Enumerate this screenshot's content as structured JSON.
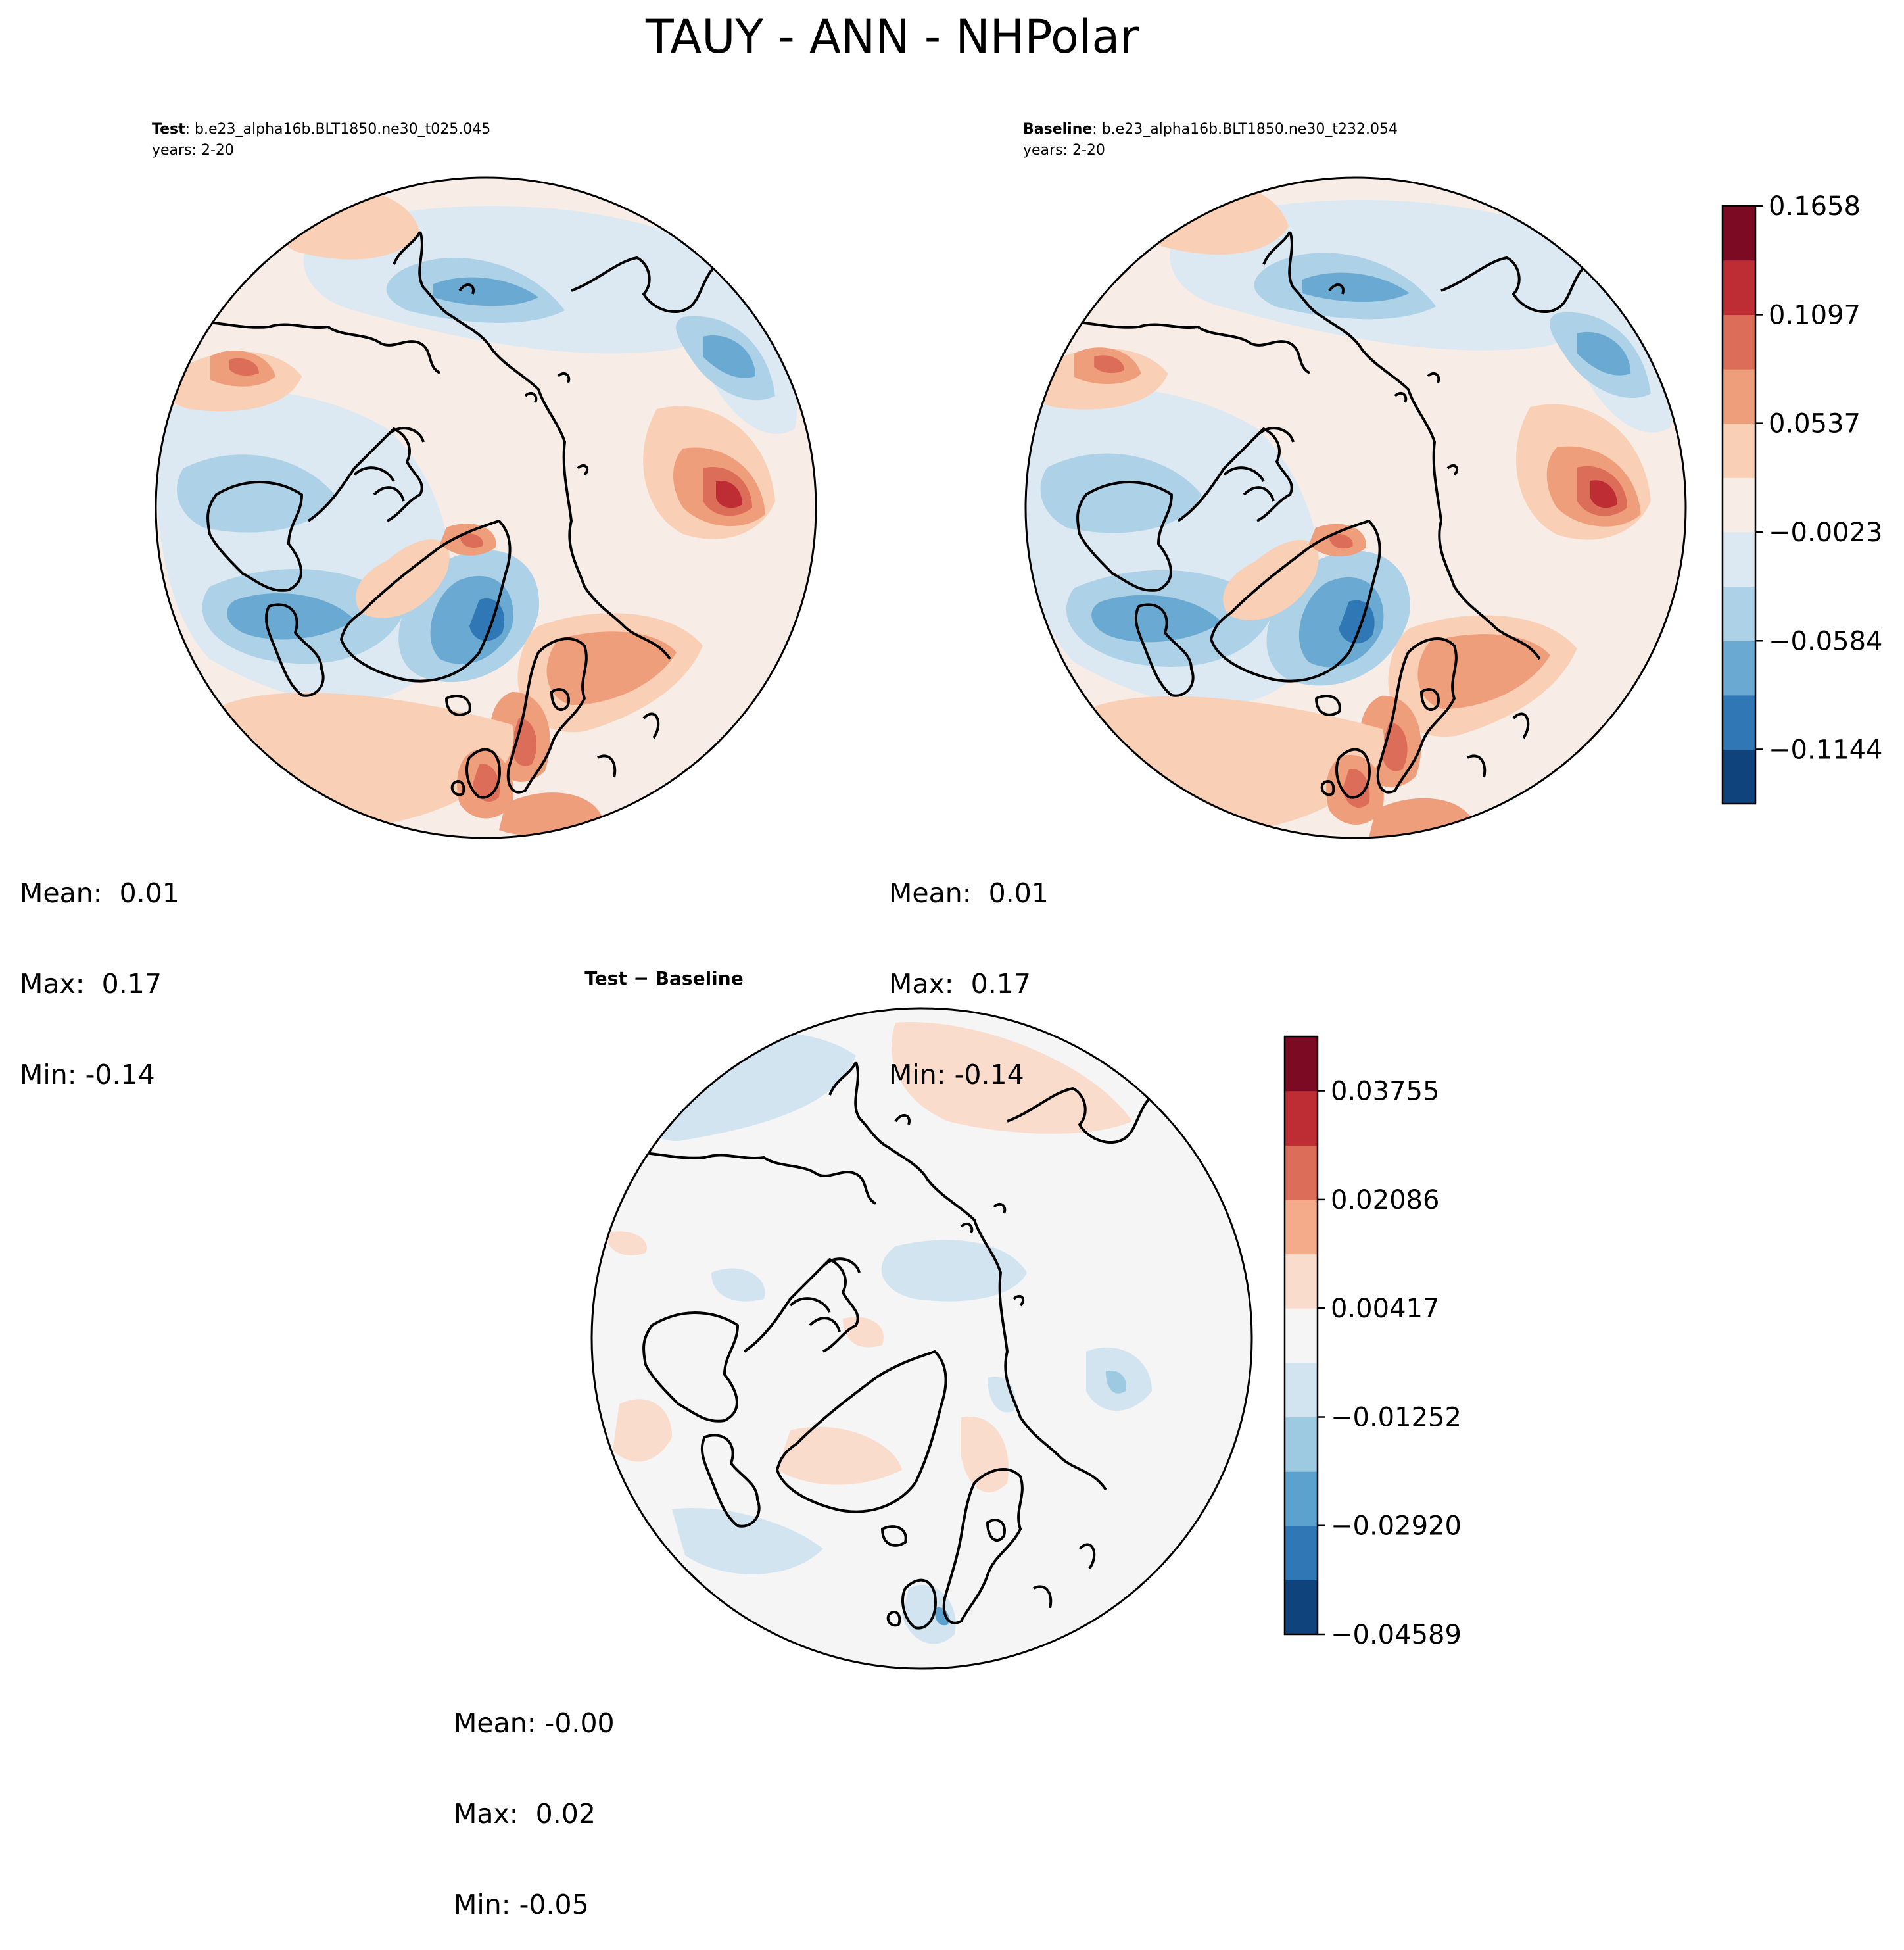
{
  "figure": {
    "title": "TAUY - ANN - NHPolar"
  },
  "panels": {
    "test": {
      "label_bold": "Test",
      "case": ": b.e23_alpha16b.BLT1850.ne30_t025.045",
      "years": "years: 2-20",
      "stats": {
        "mean": "Mean:  0.01",
        "max": "Max:  0.17",
        "min": "Min: -0.14"
      }
    },
    "baseline": {
      "label_bold": "Baseline",
      "case": ": b.e23_alpha16b.BLT1850.ne30_t232.054",
      "years": "years: 2-20",
      "stats": {
        "mean": "Mean:  0.01",
        "max": "Max:  0.17",
        "min": "Min: -0.14"
      }
    },
    "diff": {
      "label": "Test − Baseline",
      "stats": {
        "mean": "Mean: -0.00",
        "max": "Max:  0.02",
        "min": "Min: -0.05"
      }
    }
  },
  "chart_data": [
    {
      "type": "heatmap",
      "projection": "north-polar-stereographic",
      "panel": "test",
      "variable": "TAUY",
      "season": "ANN",
      "mean": 0.01,
      "max": 0.17,
      "min": -0.14,
      "colormap": "RdBu_r",
      "levels": [
        -0.1424,
        -0.1144,
        -0.0864,
        -0.0584,
        -0.0303,
        -0.0023,
        0.0257,
        0.0537,
        0.0817,
        0.1097,
        0.1378,
        0.1658
      ]
    },
    {
      "type": "heatmap",
      "projection": "north-polar-stereographic",
      "panel": "baseline",
      "variable": "TAUY",
      "season": "ANN",
      "mean": 0.01,
      "max": 0.17,
      "min": -0.14,
      "colormap": "RdBu_r",
      "levels": [
        -0.1424,
        -0.1144,
        -0.0864,
        -0.0584,
        -0.0303,
        -0.0023,
        0.0257,
        0.0537,
        0.0817,
        0.1097,
        0.1378,
        0.1658
      ]
    },
    {
      "type": "heatmap",
      "projection": "north-polar-stereographic",
      "panel": "diff",
      "variable": "TAUY",
      "season": "ANN",
      "mean": -0.0,
      "max": 0.02,
      "min": -0.05,
      "colormap": "RdBu_r",
      "levels": [
        -0.04589,
        -0.03754,
        -0.0292,
        -0.02086,
        -0.01252,
        -0.00417,
        0.00417,
        0.01252,
        0.02086,
        0.0292,
        0.03755,
        0.04589
      ]
    }
  ],
  "colorbars": {
    "main": {
      "ticks": [
        {
          "value": 0.1658,
          "label": "0.1658"
        },
        {
          "value": 0.1097,
          "label": "0.1097"
        },
        {
          "value": 0.0537,
          "label": "0.0537"
        },
        {
          "value": -0.0023,
          "label": "−0.0023"
        },
        {
          "value": -0.0584,
          "label": "−0.0584"
        },
        {
          "value": -0.1144,
          "label": "−0.1144"
        }
      ]
    },
    "diff": {
      "ticks": [
        {
          "value": 0.03755,
          "label": "0.03755"
        },
        {
          "value": 0.02086,
          "label": "0.02086"
        },
        {
          "value": 0.00417,
          "label": "0.00417"
        },
        {
          "value": -0.01252,
          "label": "−0.01252"
        },
        {
          "value": -0.0292,
          "label": "−0.02920"
        },
        {
          "value": -0.04589,
          "label": "−0.04589"
        }
      ]
    },
    "colors": [
      "#0f437b",
      "#2f78b5",
      "#6aaad2",
      "#add1e6",
      "#dce9f2",
      "#f7ece6",
      "#f9cfb6",
      "#ef9e7c",
      "#dc6d59",
      "#bd2d33",
      "#7c0a22"
    ],
    "diff_colors": [
      "#0f437b",
      "#2f78b5",
      "#5ba2ce",
      "#9dc9e1",
      "#d3e4f1",
      "#f5f5f5",
      "#fadccd",
      "#f3ab89",
      "#dc6d59",
      "#bd2d33",
      "#7c0a22"
    ]
  }
}
